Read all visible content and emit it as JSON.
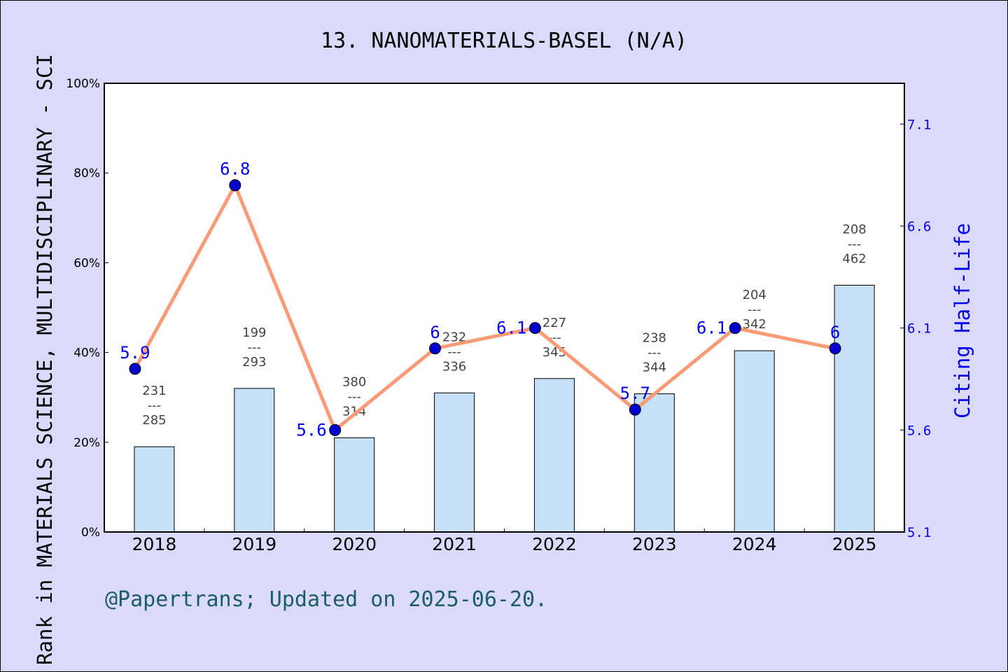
{
  "chart_data": {
    "type": "bar+line",
    "title": "13. NANOMATERIALS-BASEL (N/A)",
    "ylabel": "Rank in MATERIALS SCIENCE, MULTIDISCIPLINARY - SCI",
    "y2label": "Citing Half-Life",
    "footer": "@Papertrans; Updated on 2025-06-20.",
    "categories": [
      "2018",
      "2019",
      "2020",
      "2021",
      "2022",
      "2023",
      "2024",
      "2025"
    ],
    "ylim": [
      0,
      100
    ],
    "yticks": [
      "0%",
      "20%",
      "40%",
      "60%",
      "80%",
      "100%"
    ],
    "y2lim": [
      5.1,
      7.3
    ],
    "y2ticks": [
      "5.1",
      "5.6",
      "6.1",
      "6.6",
      "7.1"
    ],
    "bars": {
      "values": [
        19,
        32,
        21,
        31,
        34.2,
        30.8,
        40.4,
        55
      ],
      "rank": [
        "231",
        "199",
        "380",
        "232",
        "227",
        "238",
        "204",
        "208"
      ],
      "total": [
        "285",
        "293",
        "314",
        "336",
        "345",
        "344",
        "342",
        "462"
      ],
      "color": "#c5e0f7"
    },
    "line": {
      "values": [
        5.9,
        6.8,
        5.6,
        6,
        6.1,
        5.7,
        6.1,
        6
      ],
      "labels": [
        "5.9",
        "6.8",
        "5.6",
        "6",
        "6.1",
        "5.7",
        "6.1",
        "6"
      ],
      "line_color": "#fa9b78",
      "marker_color": "#0000cc",
      "label_color": "#0000ee"
    },
    "grid": false
  }
}
